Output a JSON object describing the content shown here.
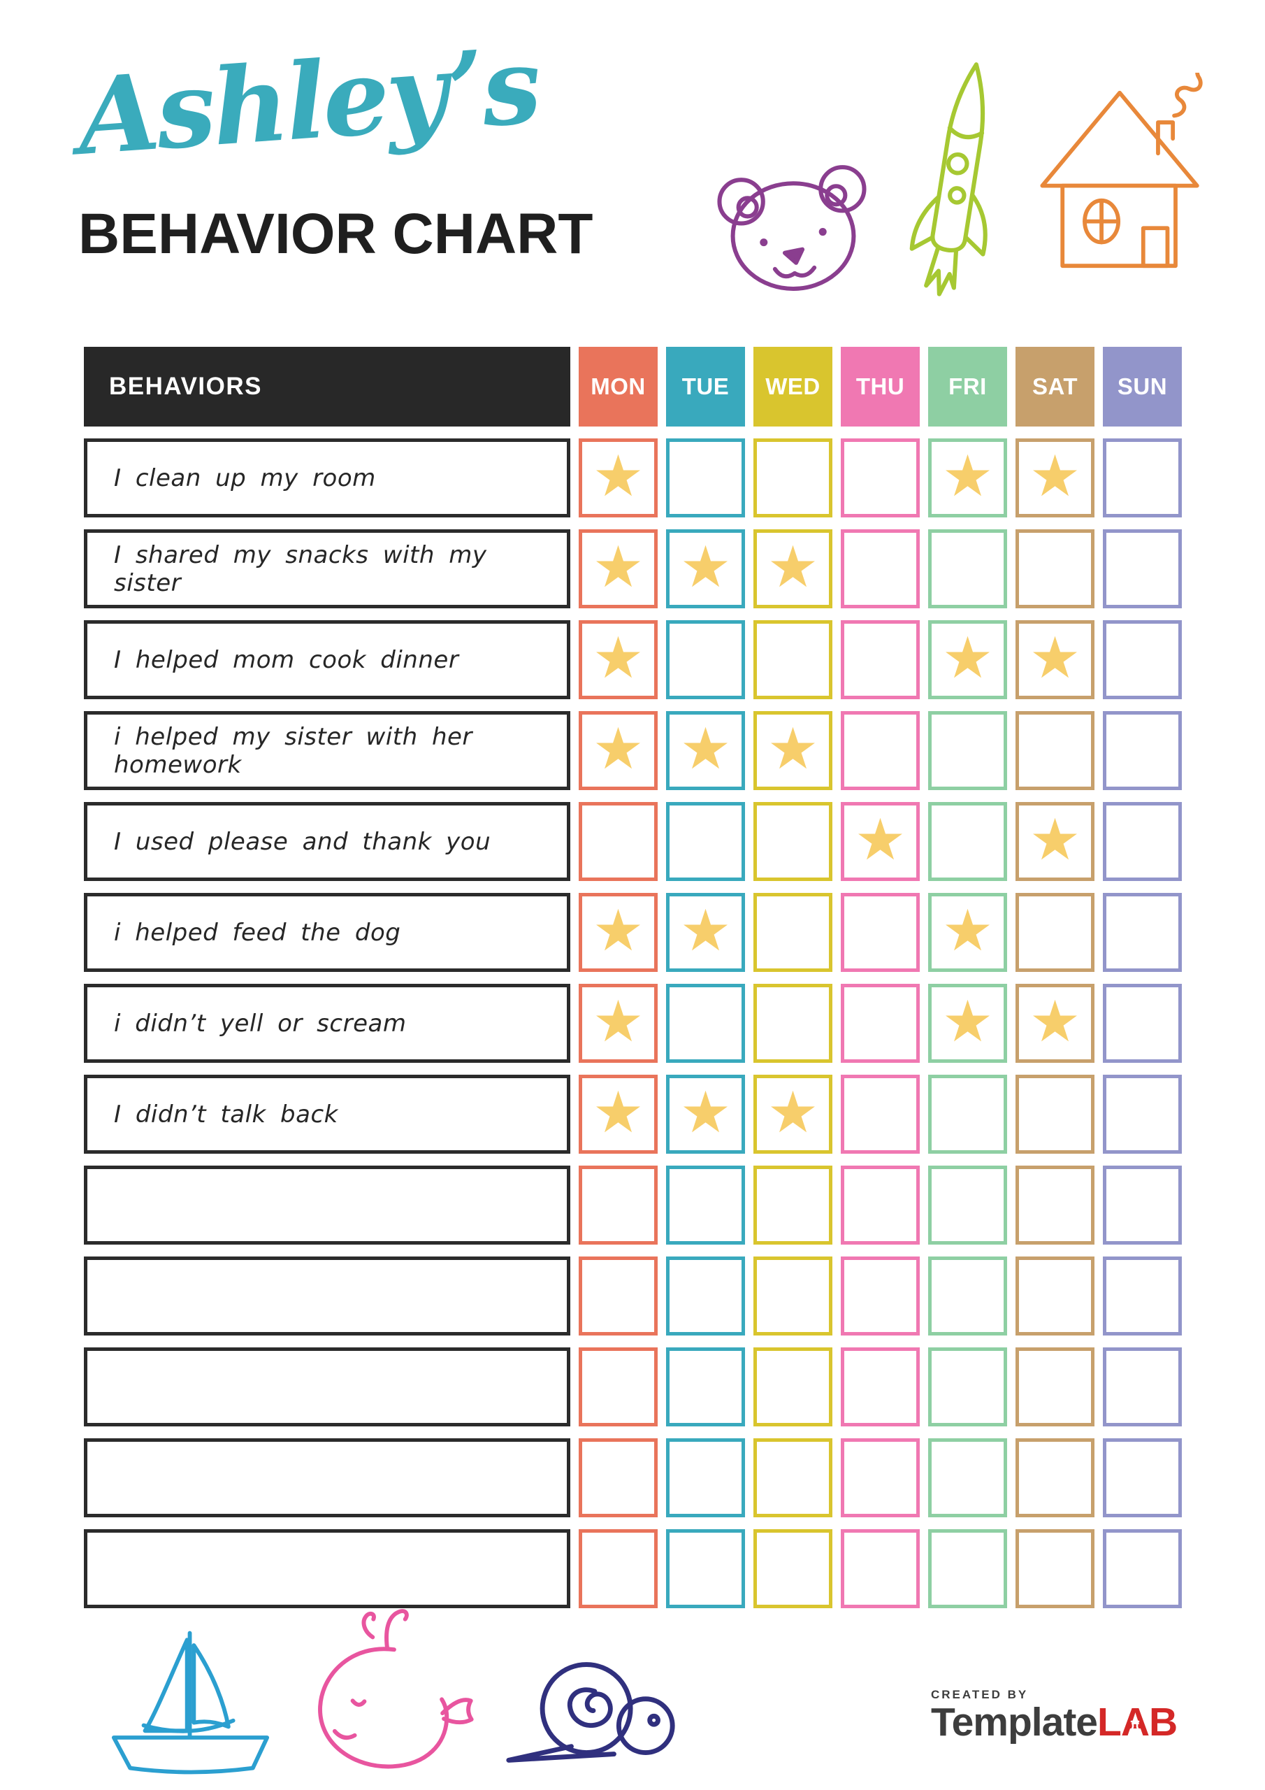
{
  "title": {
    "name": "Ashley’s",
    "subtitle": "BEHAVIOR CHART",
    "name_color": "#3AABBC",
    "subtitle_color": "#1F1F1F"
  },
  "doodles": {
    "bear_color": "#8A3E8F",
    "rocket_color": "#A6C832",
    "house_color": "#E8883A",
    "sailboat_color": "#2B9FD0",
    "whale_color": "#E8559F",
    "snail_color": "#30307E"
  },
  "table": {
    "behaviors_header": "BEHAVIORS",
    "header_bg": "#282828",
    "header_text_color": "#FFFFFF",
    "row_border_color": "#2B2B2B",
    "star_glyph": "★",
    "star_color": "#F7CE6B",
    "days": [
      {
        "label": "MON",
        "color": "#E9745B"
      },
      {
        "label": "TUE",
        "color": "#39A9BD"
      },
      {
        "label": "WED",
        "color": "#D9C52E"
      },
      {
        "label": "THU",
        "color": "#F078B2"
      },
      {
        "label": "FRI",
        "color": "#8ECFA3"
      },
      {
        "label": "SAT",
        "color": "#C7A06C"
      },
      {
        "label": "SUN",
        "color": "#9295CA"
      }
    ],
    "rows": [
      {
        "behavior": "I clean up my room",
        "stars": [
          "MON",
          "FRI",
          "SAT"
        ]
      },
      {
        "behavior": "I shared my snacks with my sister",
        "stars": [
          "MON",
          "TUE",
          "WED"
        ]
      },
      {
        "behavior": "I helped mom cook dinner",
        "stars": [
          "MON",
          "FRI",
          "SAT"
        ]
      },
      {
        "behavior": "i helped my sister with her homework",
        "stars": [
          "MON",
          "TUE",
          "WED"
        ]
      },
      {
        "behavior": "I used please and thank you",
        "stars": [
          "THU",
          "SAT"
        ]
      },
      {
        "behavior": "i helped feed the dog",
        "stars": [
          "MON",
          "TUE",
          "FRI"
        ]
      },
      {
        "behavior": "i didn’t yell or scream",
        "stars": [
          "MON",
          "FRI",
          "SAT"
        ]
      },
      {
        "behavior": "I didn’t talk back",
        "stars": [
          "MON",
          "TUE",
          "WED"
        ]
      },
      {
        "behavior": "",
        "stars": []
      },
      {
        "behavior": "",
        "stars": []
      },
      {
        "behavior": "",
        "stars": []
      },
      {
        "behavior": "",
        "stars": []
      },
      {
        "behavior": "",
        "stars": []
      }
    ]
  },
  "footer": {
    "created_by": "CREATED BY",
    "brand_template": "Template",
    "brand_lab": "LAB",
    "brand_template_color": "#3D3D3D",
    "brand_lab_color": "#D42827"
  }
}
